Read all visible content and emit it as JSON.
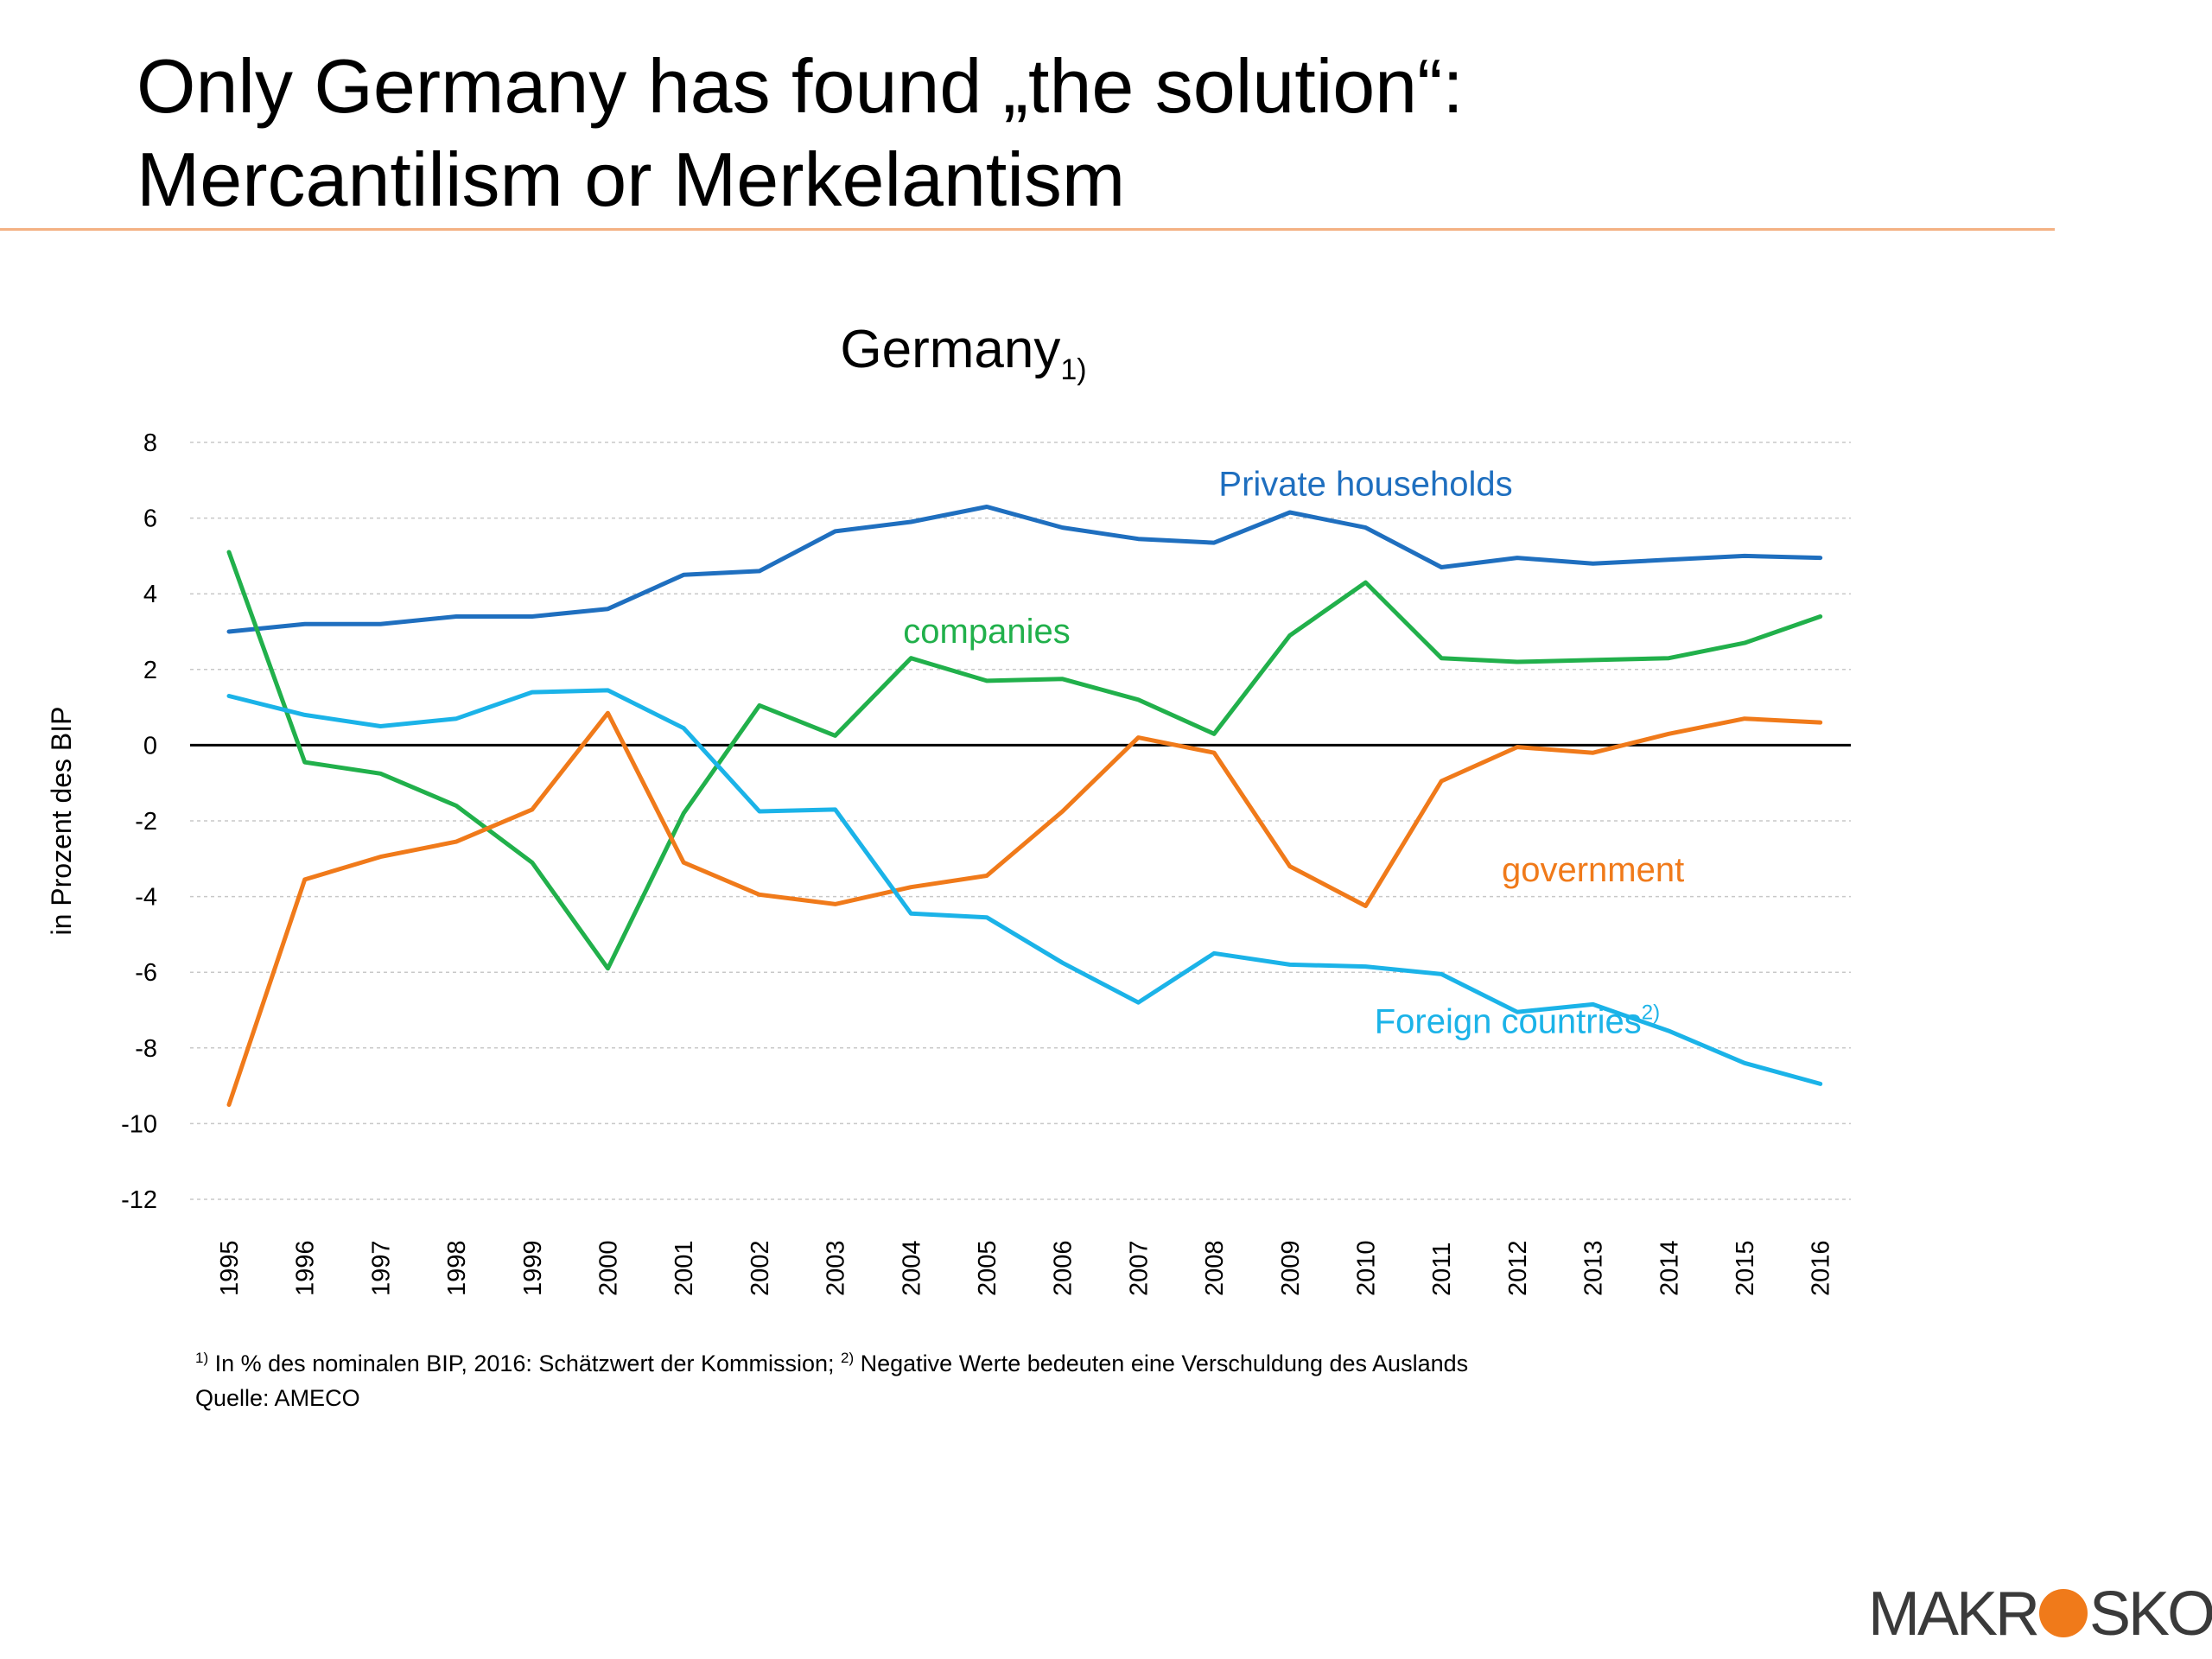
{
  "slide": {
    "title_line1": "Only Germany has found „the solution“:",
    "title_line2": "Mercantilism or Merkelantism"
  },
  "footnote": {
    "marker1": "1)",
    "text1": " In % des nominalen BIP, 2016: Schätzwert der Kommission; ",
    "marker2": "2)",
    "text2": " Negative Werte bedeuten eine Verschuldung des Auslands",
    "source": "Quelle: AMECO"
  },
  "logo": {
    "part1": "MAKR",
    "part2": "SKOP",
    "dot_color": "#f07a1a"
  },
  "chart_data": {
    "type": "line",
    "title": "Germany",
    "title_footnote": "1)",
    "xlabel": "",
    "ylabel": "in Prozent des BIP",
    "ylim": [
      -12,
      8
    ],
    "yticks": [
      8,
      6,
      4,
      2,
      0,
      -2,
      -4,
      -6,
      -8,
      -10,
      -12
    ],
    "grid": "horizontal dashed",
    "x": [
      "1995",
      "1996",
      "1997",
      "1998",
      "1999",
      "2000",
      "2001",
      "2002",
      "2003",
      "2004",
      "2005",
      "2006",
      "2007",
      "2008",
      "2009",
      "2010",
      "2011",
      "2012",
      "2013",
      "2014",
      "2015",
      "2016"
    ],
    "series": [
      {
        "name": "Private households",
        "label_footnote": "",
        "color": "#1f6fbf",
        "label_anchor": {
          "x": "2010",
          "y": 6.6
        },
        "values": [
          3.0,
          3.2,
          3.2,
          3.4,
          3.4,
          3.6,
          4.5,
          4.6,
          5.65,
          5.9,
          6.3,
          5.75,
          5.45,
          5.35,
          6.15,
          5.75,
          4.7,
          4.95,
          4.8,
          4.9,
          5.0,
          4.95
        ]
      },
      {
        "name": "companies",
        "label_footnote": "",
        "color": "#21b04b",
        "label_anchor": {
          "x": "2005",
          "y": 2.7
        },
        "values": [
          5.1,
          -0.45,
          -0.75,
          -1.6,
          -3.1,
          -5.9,
          -1.8,
          1.05,
          0.25,
          2.3,
          1.7,
          1.75,
          1.2,
          0.3,
          2.9,
          4.3,
          2.3,
          2.2,
          2.25,
          2.3,
          2.7,
          3.4
        ]
      },
      {
        "name": "government",
        "label_footnote": "",
        "color": "#f07a1a",
        "label_anchor": {
          "x": "2013",
          "y": -3.6
        },
        "values": [
          -9.5,
          -3.55,
          -2.95,
          -2.55,
          -1.7,
          0.85,
          -3.1,
          -3.95,
          -4.2,
          -3.75,
          -3.45,
          -1.75,
          0.2,
          -0.2,
          -3.2,
          -4.25,
          -0.95,
          -0.05,
          -0.2,
          0.3,
          0.7,
          0.6
        ]
      },
      {
        "name": "Foreign countries",
        "label_footnote": "2)",
        "color": "#1bb3e8",
        "label_anchor": {
          "x": "2012",
          "y": -7.6
        },
        "values": [
          1.3,
          0.8,
          0.5,
          0.7,
          1.4,
          1.45,
          0.45,
          -1.75,
          -1.7,
          -4.45,
          -4.55,
          -5.75,
          -6.8,
          -5.5,
          -5.8,
          -5.85,
          -6.05,
          -7.05,
          -6.85,
          -7.55,
          -8.4,
          -8.95
        ]
      }
    ]
  }
}
